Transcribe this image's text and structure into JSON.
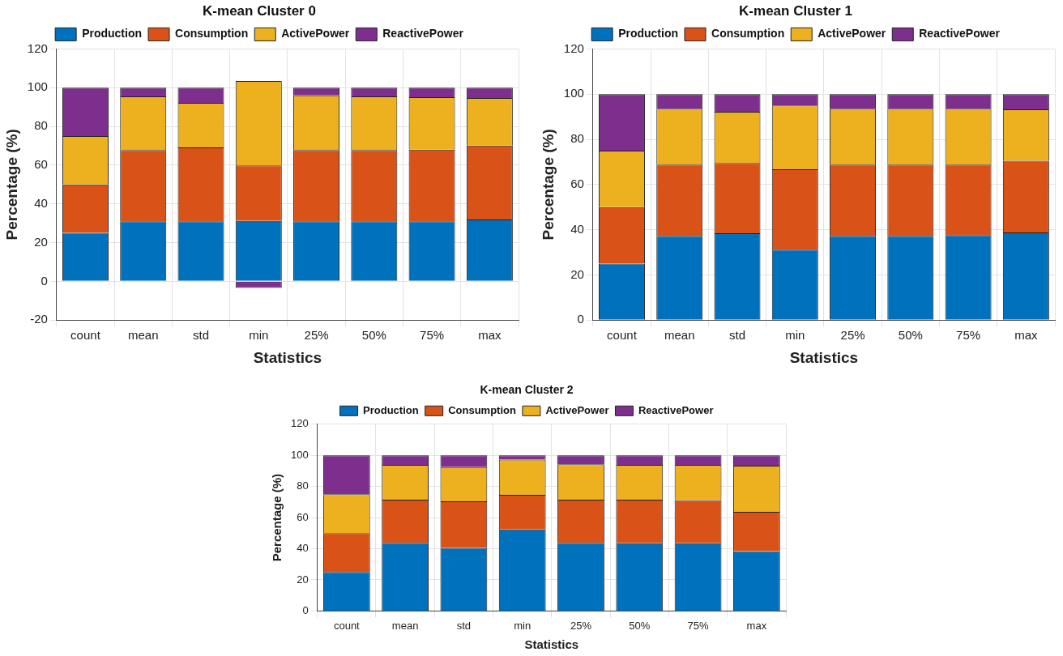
{
  "chart_data": [
    {
      "type": "bar",
      "title": "K-mean Cluster 0",
      "xlabel": "Statistics",
      "ylabel": "Percentage (%)",
      "categories": [
        "count",
        "mean",
        "std",
        "min",
        "25%",
        "50%",
        "75%",
        "max"
      ],
      "stacked": true,
      "ylim": [
        -20,
        120
      ],
      "yticks": [
        -20,
        0,
        20,
        40,
        60,
        80,
        100,
        120
      ],
      "grid": true,
      "legend": "top",
      "series": [
        {
          "name": "Production",
          "color": "#0072bd",
          "values": [
            25,
            31,
            31,
            31.2,
            31,
            31,
            31,
            31.9
          ]
        },
        {
          "name": "Consumption",
          "color": "#d95319",
          "values": [
            25,
            36.8,
            38.1,
            28.6,
            36.8,
            36.8,
            37,
            38.2
          ]
        },
        {
          "name": "ActivePower",
          "color": "#edb120",
          "values": [
            25,
            27.7,
            23.1,
            43.6,
            28.2,
            27.7,
            27.1,
            24.6
          ]
        },
        {
          "name": "ReactivePower",
          "color": "#7e2f8e",
          "values": [
            25,
            4.5,
            7.8,
            -3.4,
            4,
            4.5,
            4.9,
            5.3
          ]
        }
      ]
    },
    {
      "type": "bar",
      "title": "K-mean Cluster 1",
      "xlabel": "Statistics",
      "ylabel": "Percentage (%)",
      "categories": [
        "count",
        "mean",
        "std",
        "min",
        "25%",
        "50%",
        "75%",
        "max"
      ],
      "stacked": true,
      "ylim": [
        0,
        120
      ],
      "yticks": [
        0,
        20,
        40,
        60,
        80,
        100,
        120
      ],
      "grid": true,
      "legend": "top",
      "series": [
        {
          "name": "Production",
          "color": "#0072bd",
          "values": [
            25,
            37.3,
            38.4,
            31.2,
            37.3,
            37.3,
            37.6,
            38.8
          ]
        },
        {
          "name": "Consumption",
          "color": "#d95319",
          "values": [
            25,
            31.5,
            31.1,
            35.5,
            31.5,
            31.5,
            31.2,
            31.7
          ]
        },
        {
          "name": "ActivePower",
          "color": "#edb120",
          "values": [
            25,
            24.7,
            22.7,
            28.3,
            24.7,
            24.7,
            24.7,
            22.8
          ]
        },
        {
          "name": "ReactivePower",
          "color": "#7e2f8e",
          "values": [
            25,
            6.5,
            7.8,
            5,
            6.5,
            6.5,
            6.5,
            6.7
          ]
        }
      ]
    },
    {
      "type": "bar",
      "title": "K-mean Cluster 2",
      "xlabel": "Statistics",
      "ylabel": "Percentage (%)",
      "categories": [
        "count",
        "mean",
        "std",
        "min",
        "25%",
        "50%",
        "75%",
        "max"
      ],
      "stacked": true,
      "ylim": [
        0,
        120
      ],
      "yticks": [
        0,
        20,
        40,
        60,
        80,
        100,
        120
      ],
      "grid": true,
      "legend": "top",
      "series": [
        {
          "name": "Production",
          "color": "#0072bd",
          "values": [
            25,
            43.8,
            40.5,
            52.4,
            43.8,
            43.5,
            43.5,
            38.5
          ]
        },
        {
          "name": "Consumption",
          "color": "#d95319",
          "values": [
            25,
            27.7,
            29.9,
            22.2,
            27.7,
            28,
            27.8,
            25.2
          ]
        },
        {
          "name": "ActivePower",
          "color": "#edb120",
          "values": [
            25,
            22.4,
            22,
            22.6,
            22.8,
            22.4,
            22.6,
            29.6
          ]
        },
        {
          "name": "ReactivePower",
          "color": "#7e2f8e",
          "values": [
            25,
            6.1,
            7.6,
            2.8,
            5.7,
            6.1,
            6.1,
            6.7
          ]
        }
      ]
    }
  ]
}
